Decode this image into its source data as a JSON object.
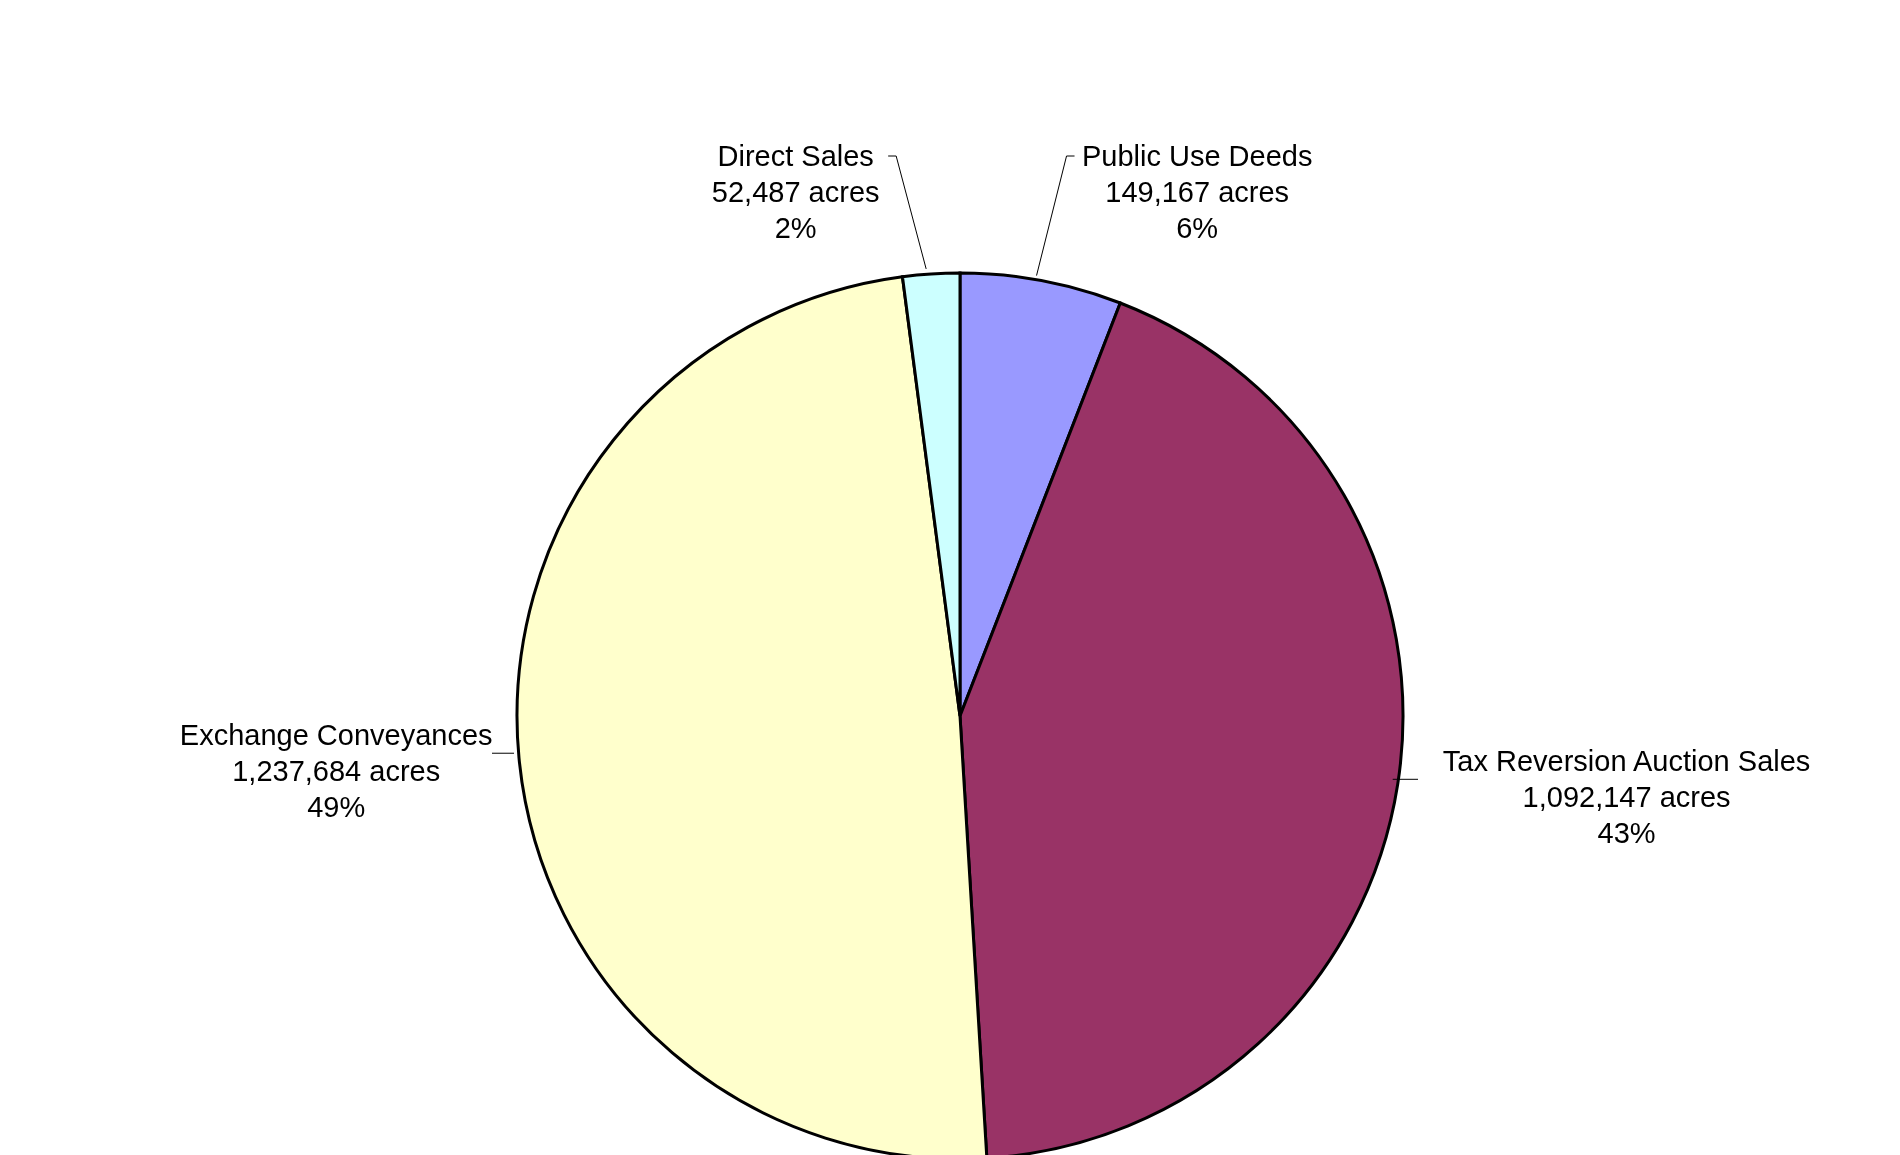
{
  "chart_data": {
    "type": "pie",
    "categories": [
      "Public Use Deeds",
      "Tax Reversion Auction Sales",
      "Exchange Conveyances",
      "Direct Sales"
    ],
    "values": [
      149167,
      1092147,
      1237684,
      52487
    ],
    "value_labels": [
      "149,167 acres\n6%",
      "1,092,147 acres\n43%",
      "1,237,684 acres\n49%",
      "52,487 acres\n2%"
    ],
    "colors": [
      "#9999ff",
      "#993366",
      "#ffffcc",
      "#ccffff"
    ],
    "legend": false
  }
}
